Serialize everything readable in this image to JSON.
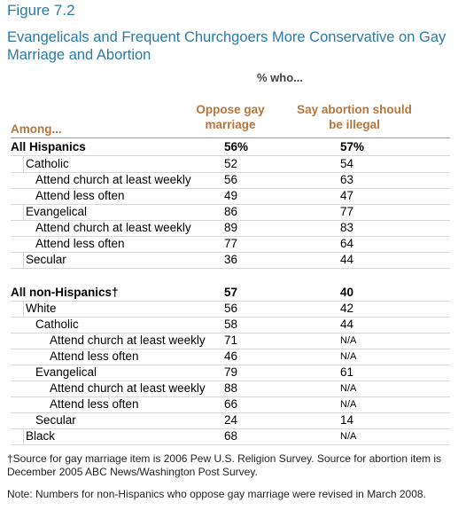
{
  "header": {
    "figure": "Figure 7.2",
    "title": "Evangelicals and Frequent Churchgoers More Conservative on Gay Marriage and Abortion"
  },
  "table": {
    "subheader": "% who...",
    "columns": [
      "Among...",
      "Oppose gay marriage",
      "Say abortion should be illegal"
    ],
    "rows": [
      [
        "All Hispanics",
        "56%",
        "57%"
      ],
      [
        "Catholic",
        "52",
        "54"
      ],
      [
        "Attend church at least weekly",
        "56",
        "63"
      ],
      [
        "Attend less often",
        "49",
        "47"
      ],
      [
        "Evangelical",
        "86",
        "77"
      ],
      [
        "Attend church at least weekly",
        "89",
        "83"
      ],
      [
        "Attend less often",
        "77",
        "64"
      ],
      [
        "Secular",
        "36",
        "44"
      ],
      [
        "All non-Hispanics†",
        "57",
        "40"
      ],
      [
        "White",
        "56",
        "42"
      ],
      [
        "Catholic",
        "58",
        "44"
      ],
      [
        "Attend church at least weekly",
        "71",
        "N/A"
      ],
      [
        "Attend less often",
        "46",
        "N/A"
      ],
      [
        "Evangelical",
        "79",
        "61"
      ],
      [
        "Attend church at least weekly",
        "88",
        "N/A"
      ],
      [
        "Attend less often",
        "66",
        "N/A"
      ],
      [
        "Secular",
        "24",
        "14"
      ],
      [
        "Black",
        "68",
        "N/A"
      ]
    ]
  },
  "footnotes": [
    "†Source for gay marriage item is 2006 Pew U.S. Religion Survey. Source for abortion item is December 2005 ABC News/Washington Post Survey.",
    "Note: Numbers for non-Hispanics who oppose gay marriage were revised in March 2008."
  ]
}
